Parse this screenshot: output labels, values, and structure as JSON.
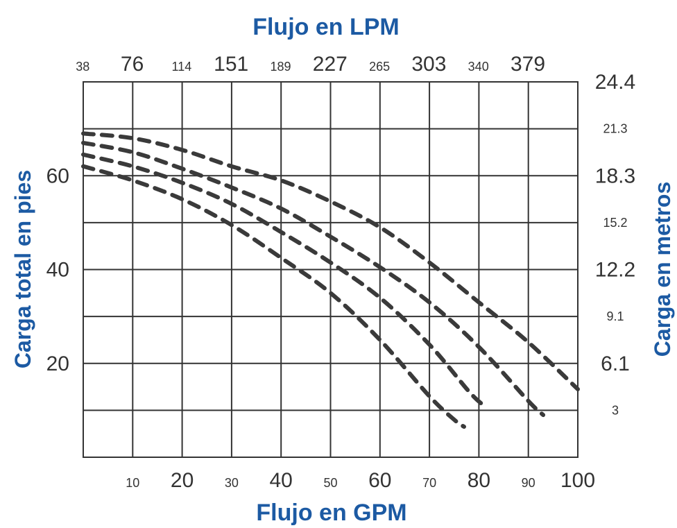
{
  "chart_data": {
    "type": "line",
    "title": "Flujo en LPM",
    "xlabel": "Flujo en GPM",
    "ylabel": "Carga total en pies",
    "y2label": "Carga en metros",
    "xlim": [
      0,
      100
    ],
    "ylim": [
      0,
      80
    ],
    "grid": true,
    "bottom_ticks": [
      {
        "label": "10",
        "major": false
      },
      {
        "label": "20",
        "major": true
      },
      {
        "label": "30",
        "major": false
      },
      {
        "label": "40",
        "major": true
      },
      {
        "label": "50",
        "major": false
      },
      {
        "label": "60",
        "major": true
      },
      {
        "label": "70",
        "major": false
      },
      {
        "label": "80",
        "major": true
      },
      {
        "label": "90",
        "major": false
      },
      {
        "label": "100",
        "major": true
      }
    ],
    "top_ticks": [
      {
        "label": "38",
        "major": false
      },
      {
        "label": "76",
        "major": true
      },
      {
        "label": "114",
        "major": false
      },
      {
        "label": "151",
        "major": true
      },
      {
        "label": "189",
        "major": false
      },
      {
        "label": "227",
        "major": true
      },
      {
        "label": "265",
        "major": false
      },
      {
        "label": "303",
        "major": true
      },
      {
        "label": "340",
        "major": false
      },
      {
        "label": "379",
        "major": true
      }
    ],
    "left_ticks": [
      {
        "label": "20",
        "value": 20
      },
      {
        "label": "40",
        "value": 40
      },
      {
        "label": "60",
        "value": 60
      }
    ],
    "right_ticks": [
      {
        "label": "3",
        "value": 10,
        "major": false
      },
      {
        "label": "6.1",
        "value": 20,
        "major": true
      },
      {
        "label": "9.1",
        "value": 30,
        "major": false
      },
      {
        "label": "12.2",
        "value": 40,
        "major": true
      },
      {
        "label": "15.2",
        "value": 50,
        "major": false
      },
      {
        "label": "18.3",
        "value": 60,
        "major": true
      },
      {
        "label": "21.3",
        "value": 70,
        "major": false
      },
      {
        "label": "24.4",
        "value": 80,
        "major": true
      }
    ],
    "series": [
      {
        "x": [
          0,
          10,
          20,
          30,
          40,
          50,
          60,
          70,
          75,
          77
        ],
        "y": [
          62,
          59,
          55,
          49.5,
          42.5,
          35,
          25,
          13,
          8,
          6.5
        ]
      },
      {
        "x": [
          0,
          10,
          20,
          30,
          40,
          50,
          60,
          70,
          78,
          81
        ],
        "y": [
          64.5,
          62,
          58.5,
          54,
          48,
          41.5,
          34,
          24,
          14,
          11
        ]
      },
      {
        "x": [
          0,
          10,
          20,
          30,
          40,
          50,
          60,
          70,
          80,
          90,
          93
        ],
        "y": [
          67,
          65,
          61.5,
          57.5,
          53,
          47,
          40.5,
          33,
          23.5,
          12,
          9
        ]
      },
      {
        "x": [
          0,
          10,
          20,
          30,
          40,
          50,
          60,
          70,
          80,
          90,
          100
        ],
        "y": [
          69,
          68,
          65.5,
          62,
          59,
          54.5,
          49,
          41.5,
          33,
          24.5,
          14.5
        ]
      }
    ]
  }
}
